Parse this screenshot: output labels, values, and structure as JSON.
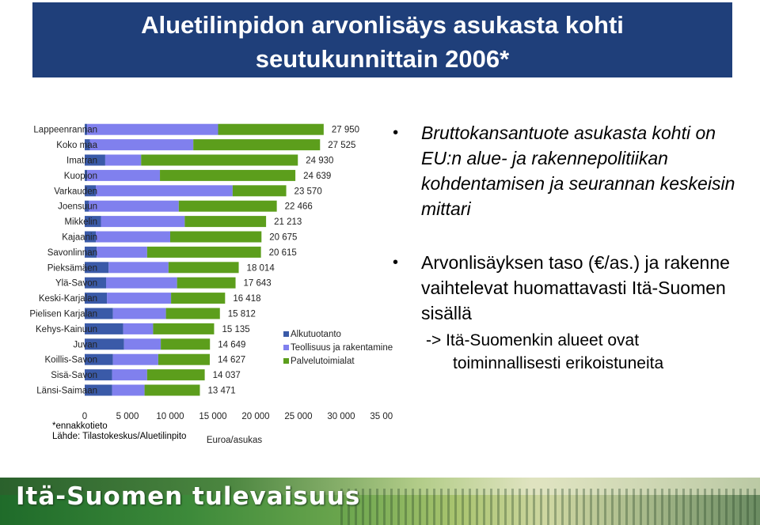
{
  "slide": {
    "title_line1": "Aluetilinpidon arvonlisäys asukasta kohti",
    "title_line2": "seutukunnittain 2006*",
    "note": "*ennakkotieto",
    "source": "Lähde: Tilastokeskus/Aluetilinpito",
    "footer_logo_text": "Itä-Suomen tulevaisuus"
  },
  "bullets": {
    "b1": "Bruttokansantuote asukasta kohti on EU:n alue- ja rakennepolitiikan kohdentamisen ja seurannan keskeisin mittari",
    "b2": "Arvonlisäyksen taso (€/as.) ja rakenne vaihtelevat huomattavasti Itä-Suomen sisällä",
    "sub_line1": "-> Itä-Suomenkin alueet ovat",
    "sub_line2": "toiminnallisesti erikoistuneita"
  },
  "colors": {
    "title_bg": "#1f3f7a",
    "alkutuotanto": "#3a5aa8",
    "teollisuus": "#8080ee",
    "palvelut": "#5c9e1c"
  },
  "chart_data": {
    "type": "bar",
    "orientation": "horizontal",
    "stacked": true,
    "xlabel": "Euroa/asukas",
    "xlim": [
      0,
      35000
    ],
    "xticks": [
      "0",
      "5 000",
      "10 000",
      "15 000",
      "20 000",
      "25 000",
      "30 000",
      "35 000"
    ],
    "categories": [
      "Lappeenrannan",
      "Koko maa",
      "Imatran",
      "Kuopion",
      "Varkauden",
      "Joensuun",
      "Mikkelin",
      "Kajaanin",
      "Savonlinnan",
      "Pieksämäen",
      "Ylä-Savon",
      "Keski-Karjalan",
      "Pielisen Karjalan",
      "Kehys-Kainuun",
      "Juvan",
      "Koillis-Savon",
      "Sisä-Savon",
      "Länsi-Saimaan"
    ],
    "totals": [
      27950,
      27525,
      24930,
      24639,
      23570,
      22466,
      21213,
      20675,
      20615,
      18014,
      17643,
      16418,
      15812,
      15135,
      14649,
      14627,
      14037,
      13471
    ],
    "total_labels": [
      "27 950",
      "27 525",
      "24 930",
      "24 639",
      "23 570",
      "22 466",
      "21 213",
      "20 675",
      "20 615",
      "18 014",
      "17 643",
      "16 418",
      "15 812",
      "15 135",
      "14 649",
      "14 627",
      "14 037",
      "13 471"
    ],
    "series": [
      {
        "name": "Alkutuotanto",
        "values": [
          300,
          600,
          2400,
          300,
          1300,
          500,
          1900,
          1300,
          1400,
          2800,
          2500,
          2600,
          3300,
          4500,
          4600,
          3300,
          3200,
          3200
        ]
      },
      {
        "name": "Teollisuus ja rakentaminen",
        "values": [
          15300,
          12100,
          4200,
          8500,
          16000,
          10500,
          9800,
          8700,
          5900,
          7000,
          8300,
          7500,
          6200,
          3500,
          4300,
          5300,
          4100,
          3800
        ]
      },
      {
        "name": "Palvelutoimialat",
        "values": [
          12350,
          14825,
          18330,
          15839,
          6270,
          11466,
          9513,
          10675,
          13315,
          8214,
          6843,
          6318,
          6312,
          7135,
          5749,
          6027,
          6737,
          6471
        ]
      }
    ],
    "legend": [
      "Alkutuotanto",
      "Teollisuus ja rakentamine",
      "Palvelutoimialat"
    ],
    "legend_position": "right"
  }
}
